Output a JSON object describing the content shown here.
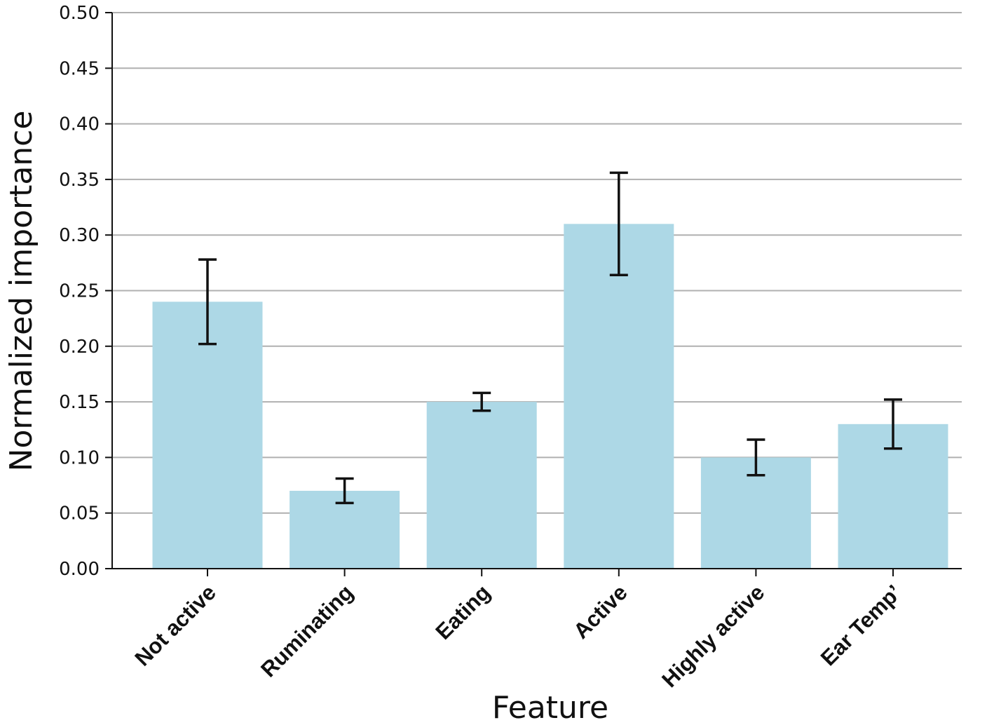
{
  "chart_data": {
    "type": "bar",
    "title": "",
    "xlabel": "Feature",
    "ylabel": "Normalized importance",
    "categories": [
      "Not active",
      "Ruminating",
      "Eating",
      "Active",
      "Highly active",
      "Ear Temp’"
    ],
    "values": [
      0.24,
      0.07,
      0.15,
      0.31,
      0.1,
      0.13
    ],
    "error_low": [
      0.202,
      0.059,
      0.142,
      0.264,
      0.084,
      0.108
    ],
    "error_high": [
      0.278,
      0.081,
      0.158,
      0.356,
      0.116,
      0.152
    ],
    "ylim": [
      0,
      0.5
    ],
    "yticks": [
      "0.00",
      "0.05",
      "0.10",
      "0.15",
      "0.20",
      "0.25",
      "0.30",
      "0.35",
      "0.40",
      "0.45",
      "0.50"
    ],
    "grid": "horizontal",
    "colors": {
      "bar": "#add8e6",
      "error": "#111111",
      "grid": "#b0b0b0",
      "axis": "#111111"
    }
  }
}
